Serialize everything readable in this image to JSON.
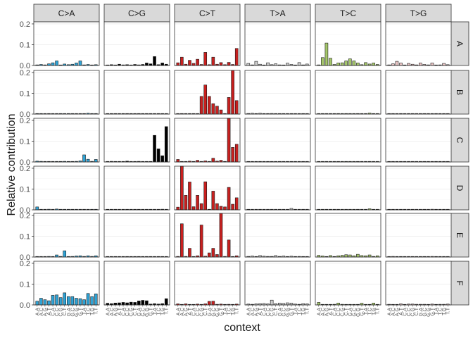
{
  "chart_data": {
    "type": "bar",
    "title": "",
    "xlabel": "context",
    "ylabel": "Relative contribution",
    "ylim": [
      0,
      0.21
    ],
    "yticks": [
      0.0,
      0.1,
      0.2
    ],
    "ytick_labels": [
      "0.0",
      "0.1",
      "0.2"
    ],
    "baseline": 0,
    "facet_columns": [
      "C>A",
      "C>G",
      "C>T",
      "T>A",
      "T>C",
      "T>G"
    ],
    "facet_rows": [
      "A",
      "B",
      "C",
      "D",
      "E",
      "F"
    ],
    "categories": [
      "A.A",
      "A.C",
      "A.G",
      "A.T",
      "C.A",
      "C.C",
      "C.G",
      "C.T",
      "G.A",
      "G.C",
      "G.G",
      "G.T",
      "T.A",
      "T.C",
      "T.G",
      "T.T"
    ],
    "column_colors": {
      "C>A": "#2ea3d6",
      "C>G": "#000000",
      "C>T": "#c8201f",
      "T>A": "#cccccc",
      "T>C": "#a5c76a",
      "T>G": "#ecc6c6"
    },
    "panels": [
      {
        "row": "A",
        "col": "C>A",
        "values": [
          0.003,
          0.005,
          0.003,
          0.008,
          0.013,
          0.022,
          0.002,
          0.007,
          0.004,
          0.006,
          0.012,
          0.022,
          0.003,
          0.005,
          0.002,
          0.004
        ]
      },
      {
        "row": "A",
        "col": "C>G",
        "values": [
          0.002,
          0.004,
          0.002,
          0.006,
          0.003,
          0.004,
          0.002,
          0.005,
          0.003,
          0.005,
          0.012,
          0.008,
          0.043,
          0.004,
          0.012,
          0.006
        ]
      },
      {
        "row": "A",
        "col": "C>T",
        "values": [
          0.013,
          0.04,
          0.006,
          0.025,
          0.01,
          0.03,
          0.005,
          0.063,
          0.004,
          0.04,
          0.006,
          0.014,
          0.004,
          0.015,
          0.005,
          0.082
        ]
      },
      {
        "row": "A",
        "col": "T>A",
        "values": [
          0.01,
          0.003,
          0.02,
          0.006,
          0.002,
          0.013,
          0.004,
          0.008,
          0.003,
          0.002,
          0.011,
          0.005,
          0.002,
          0.014,
          0.003,
          0.007
        ]
      },
      {
        "row": "A",
        "col": "T>C",
        "values": [
          0.003,
          0.038,
          0.108,
          0.035,
          0.005,
          0.012,
          0.013,
          0.022,
          0.032,
          0.022,
          0.012,
          0.004,
          0.014,
          0.007,
          0.012,
          0.005
        ]
      },
      {
        "row": "A",
        "col": "T>G",
        "values": [
          0.003,
          0.008,
          0.02,
          0.012,
          0.002,
          0.01,
          0.006,
          0.003,
          0.012,
          0.005,
          0.003,
          0.012,
          0.002,
          0.003,
          0.01,
          0.004
        ]
      },
      {
        "row": "B",
        "col": "C>A",
        "values": [
          0.001,
          0.001,
          0,
          0.001,
          0,
          0.001,
          0,
          0.001,
          0.001,
          0,
          0.001,
          0.001,
          0,
          0.004,
          0.001,
          0.001
        ]
      },
      {
        "row": "B",
        "col": "C>G",
        "values": [
          0,
          0.001,
          0,
          0.001,
          0,
          0,
          0,
          0.001,
          0,
          0.001,
          0,
          0.001,
          0,
          0.002,
          0,
          0.001
        ]
      },
      {
        "row": "B",
        "col": "C>T",
        "values": [
          0,
          0.001,
          0,
          0.001,
          0,
          0.001,
          0.085,
          0.14,
          0.085,
          0.05,
          0.038,
          0.02,
          0,
          0.08,
          0.215,
          0.065
        ]
      },
      {
        "row": "B",
        "col": "T>A",
        "values": [
          0.003,
          0.004,
          0.002,
          0.004,
          0.001,
          0.002,
          0.003,
          0.001,
          0.001,
          0.002,
          0.001,
          0.002,
          0.001,
          0.001,
          0.001,
          0.002
        ]
      },
      {
        "row": "B",
        "col": "T>C",
        "values": [
          0.001,
          0.001,
          0.001,
          0.001,
          0,
          0.001,
          0,
          0.001,
          0.001,
          0.001,
          0,
          0.001,
          0,
          0.005,
          0.001,
          0.001
        ]
      },
      {
        "row": "B",
        "col": "T>G",
        "values": [
          0,
          0,
          0.001,
          0,
          0,
          0,
          0,
          0,
          0,
          0.001,
          0,
          0,
          0,
          0.001,
          0,
          0
        ]
      },
      {
        "row": "C",
        "col": "C>A",
        "values": [
          0.004,
          0.003,
          0.002,
          0.002,
          0.001,
          0.001,
          0.002,
          0.003,
          0.001,
          0.002,
          0.003,
          0.005,
          0.034,
          0.013,
          0.003,
          0.012
        ]
      },
      {
        "row": "C",
        "col": "C>G",
        "values": [
          0,
          0.003,
          0,
          0.002,
          0,
          0.004,
          0.001,
          0.002,
          0.003,
          0,
          0.001,
          0,
          0.128,
          0.063,
          0.03,
          0.17
        ]
      },
      {
        "row": "C",
        "col": "C>T",
        "values": [
          0.012,
          0.002,
          0.001,
          0.004,
          0.001,
          0.008,
          0.001,
          0.005,
          0.001,
          0.018,
          0.004,
          0.008,
          0.001,
          0.22,
          0.07,
          0.085
        ]
      },
      {
        "row": "C",
        "col": "T>A",
        "values": [
          0.002,
          0.001,
          0.001,
          0.002,
          0.001,
          0.001,
          0.001,
          0.001,
          0.001,
          0.002,
          0.001,
          0.001,
          0.001,
          0.001,
          0.001,
          0.002
        ]
      },
      {
        "row": "C",
        "col": "T>C",
        "values": [
          0.002,
          0.001,
          0.001,
          0.001,
          0.001,
          0.001,
          0.001,
          0.001,
          0.001,
          0.001,
          0.001,
          0.001,
          0.001,
          0.001,
          0.001,
          0.001
        ]
      },
      {
        "row": "C",
        "col": "T>G",
        "values": [
          0.001,
          0.001,
          0.001,
          0.001,
          0,
          0.001,
          0.001,
          0,
          0.001,
          0.001,
          0,
          0.001,
          0.001,
          0.001,
          0,
          0.001
        ]
      },
      {
        "row": "D",
        "col": "C>A",
        "values": [
          0.014,
          0.001,
          0.001,
          0.003,
          0.002,
          0.004,
          0.001,
          0.001,
          0.001,
          0.001,
          0.001,
          0.001,
          0,
          0.001,
          0,
          0.001
        ]
      },
      {
        "row": "D",
        "col": "C>G",
        "values": [
          0,
          0.001,
          0,
          0.001,
          0,
          0.001,
          0,
          0.001,
          0.001,
          0.001,
          0.001,
          0.002,
          0,
          0,
          0.003,
          0.001
        ]
      },
      {
        "row": "D",
        "col": "C>T",
        "values": [
          0.013,
          0.215,
          0.07,
          0.134,
          0.015,
          0.07,
          0.03,
          0.135,
          0.002,
          0.09,
          0.03,
          0.017,
          0.014,
          0.108,
          0.027,
          0.058
        ]
      },
      {
        "row": "D",
        "col": "T>A",
        "values": [
          0,
          0.001,
          0,
          0.001,
          0.001,
          0.001,
          0,
          0,
          0.001,
          0.001,
          0.002,
          0.007,
          0,
          0.001,
          0,
          0
        ]
      },
      {
        "row": "D",
        "col": "T>C",
        "values": [
          0.001,
          0.001,
          0.001,
          0.001,
          0,
          0.001,
          0,
          0.001,
          0.001,
          0.001,
          0,
          0.002,
          0,
          0.005,
          0.001,
          0.001
        ]
      },
      {
        "row": "D",
        "col": "T>G",
        "values": [
          0.001,
          0,
          0,
          0.001,
          0,
          0,
          0.001,
          0,
          0,
          0.001,
          0,
          0.003,
          0,
          0,
          0,
          0.001
        ]
      },
      {
        "row": "E",
        "col": "C>A",
        "values": [
          0.002,
          0.001,
          0.001,
          0.003,
          0.002,
          0.01,
          0.003,
          0.03,
          0.002,
          0.003,
          0.005,
          0.006,
          0.003,
          0.006,
          0.003,
          0.006
        ]
      },
      {
        "row": "E",
        "col": "C>G",
        "values": [
          0,
          0.001,
          0,
          0.001,
          0,
          0,
          0.001,
          0.001,
          0,
          0.001,
          0,
          0.001,
          0,
          0.001,
          0,
          0.001
        ]
      },
      {
        "row": "E",
        "col": "C>T",
        "values": [
          0.003,
          0.16,
          0.003,
          0.042,
          0.001,
          0.006,
          0.154,
          0.004,
          0.02,
          0.042,
          0.012,
          0.22,
          0.003,
          0.082,
          0.002,
          0.006
        ]
      },
      {
        "row": "E",
        "col": "T>A",
        "values": [
          0.003,
          0.005,
          0.002,
          0.007,
          0.004,
          0.003,
          0.003,
          0.007,
          0.003,
          0.005,
          0.002,
          0.004,
          0.001,
          0.003,
          0.001,
          0.002
        ]
      },
      {
        "row": "E",
        "col": "T>C",
        "values": [
          0.008,
          0.005,
          0.002,
          0.007,
          0.001,
          0.006,
          0.008,
          0.011,
          0.01,
          0.006,
          0.013,
          0.007,
          0.006,
          0.01,
          0.003,
          0.006
        ]
      },
      {
        "row": "E",
        "col": "T>G",
        "values": [
          0.001,
          0.003,
          0.001,
          0.002,
          0.001,
          0.002,
          0.001,
          0.001,
          0.002,
          0.001,
          0.001,
          0.003,
          0.001,
          0.001,
          0.001,
          0.002
        ]
      },
      {
        "row": "F",
        "col": "C>A",
        "values": [
          0.018,
          0.032,
          0.025,
          0.02,
          0.046,
          0.048,
          0.035,
          0.058,
          0.04,
          0.04,
          0.032,
          0.03,
          0.025,
          0.055,
          0.04,
          0.053
        ]
      },
      {
        "row": "F",
        "col": "C>G",
        "values": [
          0.008,
          0.006,
          0.009,
          0.01,
          0.012,
          0.01,
          0.013,
          0.012,
          0.019,
          0.022,
          0.02,
          0.004,
          0.006,
          0.004,
          0.006,
          0.03
        ]
      },
      {
        "row": "F",
        "col": "C>T",
        "values": [
          0.005,
          0.002,
          0.005,
          0.002,
          0.001,
          0.004,
          0.001,
          0.005,
          0.017,
          0.018,
          0.003,
          0.004,
          0.002,
          0.003,
          0.002,
          0.004
        ]
      },
      {
        "row": "F",
        "col": "T>A",
        "values": [
          0.004,
          0.003,
          0.005,
          0.006,
          0.007,
          0.005,
          0.023,
          0.006,
          0.009,
          0.007,
          0.01,
          0.009,
          0.004,
          0.003,
          0.006,
          0.005
        ]
      },
      {
        "row": "F",
        "col": "T>C",
        "values": [
          0.012,
          0.002,
          0.002,
          0.002,
          0.003,
          0.009,
          0.003,
          0.001,
          0.002,
          0.002,
          0.001,
          0.008,
          0.001,
          0.002,
          0.009,
          0.002
        ]
      },
      {
        "row": "F",
        "col": "T>G",
        "values": [
          0.003,
          0.002,
          0.002,
          0.005,
          0.001,
          0.004,
          0.004,
          0.003,
          0.003,
          0.003,
          0.002,
          0.004,
          0.002,
          0.003,
          0.003,
          0.004
        ]
      }
    ]
  }
}
